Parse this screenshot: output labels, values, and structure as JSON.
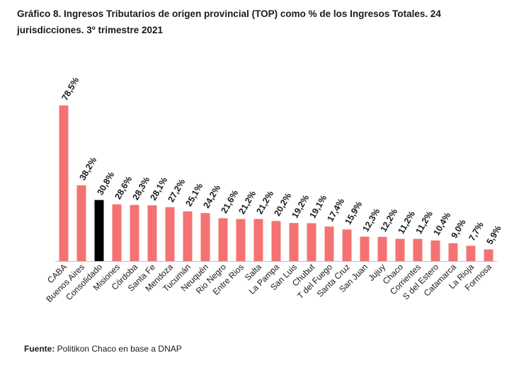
{
  "chart_data": {
    "type": "bar",
    "title_line1": "Gráfico 8. Ingresos Tributarios de origen provincial (TOP) como % de los Ingresos Totales. 24",
    "title_line2": "jurisdicciones. 3º trimestre 2021",
    "categories": [
      "CABA",
      "Buenos Aires",
      "Consolidado",
      "Misiones",
      "Córdoba",
      "Santa Fe",
      "Mendoza",
      "Tucumán",
      "Neuquén",
      "Rio Negro",
      "Entre Rios",
      "Salta",
      "La Pampa",
      "San Luis",
      "Chubut",
      "T del Fuego",
      "Santa Cruz",
      "San Juan",
      "Jujuy",
      "Chaco",
      "Corrientes",
      "S del Estero",
      "Catamarca",
      "La Rioja",
      "Formosa"
    ],
    "values": [
      78.5,
      38.2,
      30.8,
      28.6,
      28.3,
      28.1,
      27.2,
      25.1,
      24.2,
      21.6,
      21.2,
      21.2,
      20.2,
      19.2,
      19.1,
      17.4,
      15.9,
      12.3,
      12.2,
      11.2,
      11.2,
      10.4,
      9.0,
      7.7,
      5.9
    ],
    "labels": [
      "78,5%",
      "38,2%",
      "30,8%",
      "28,6%",
      "28,3%",
      "28,1%",
      "27,2%",
      "25,1%",
      "24,2%",
      "21,6%",
      "21,2%",
      "21,2%",
      "20,2%",
      "19,2%",
      "19,1%",
      "17,4%",
      "15,9%",
      "12,3%",
      "12,2%",
      "11,2%",
      "11,2%",
      "10,4%",
      "9,0%",
      "7,7%",
      "5,9%"
    ],
    "highlight_category": "Consolidado",
    "colors": {
      "bar": "#f47372",
      "highlight": "#000000",
      "axis": "#bfbfbf",
      "text": "#1a1a1a"
    },
    "ylim": [
      0,
      80
    ],
    "grid": false,
    "legend": "none"
  },
  "source": {
    "label": "Fuente:",
    "text": " Politikon Chaco en base a DNAP"
  }
}
